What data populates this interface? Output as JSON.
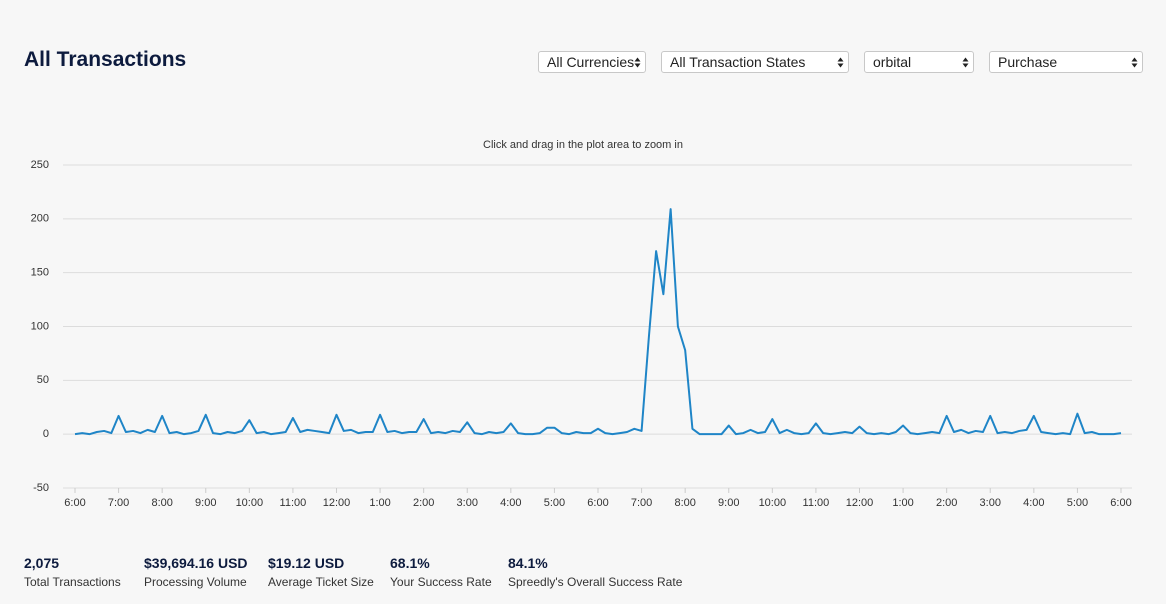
{
  "header": {
    "title": "All Transactions"
  },
  "filters": [
    "All Currencies",
    "All Transaction States",
    "orbital",
    "Purchase"
  ],
  "chart_data": {
    "type": "line",
    "subtitle": "Click and drag in the plot area to zoom in",
    "color": "#1f85c7",
    "grid": true,
    "ylim": [
      -50,
      250
    ],
    "yticks": [
      -50,
      0,
      50,
      100,
      150,
      200,
      250
    ],
    "categories": [
      "6:00",
      null,
      null,
      null,
      null,
      null,
      "7:00",
      null,
      null,
      null,
      null,
      null,
      "8:00",
      null,
      null,
      null,
      null,
      null,
      "9:00",
      null,
      null,
      null,
      null,
      null,
      "10:00",
      null,
      null,
      null,
      null,
      null,
      "11:00",
      null,
      null,
      null,
      null,
      null,
      "12:00",
      null,
      null,
      null,
      null,
      null,
      "1:00",
      null,
      null,
      null,
      null,
      null,
      "2:00",
      null,
      null,
      null,
      null,
      null,
      "3:00",
      null,
      null,
      null,
      null,
      null,
      "4:00",
      null,
      null,
      null,
      null,
      null,
      "5:00",
      null,
      null,
      null,
      null,
      null,
      "6:00",
      null,
      null,
      null,
      null,
      null,
      "7:00",
      null,
      null,
      null,
      null,
      null,
      "8:00",
      null,
      null,
      null,
      null,
      null,
      "9:00",
      null,
      null,
      null,
      null,
      null,
      "10:00",
      null,
      null,
      null,
      null,
      null,
      "11:00",
      null,
      null,
      null,
      null,
      null,
      "12:00",
      null,
      null,
      null,
      null,
      null,
      "1:00",
      null,
      null,
      null,
      null,
      null,
      "2:00",
      null,
      null,
      null,
      null,
      null,
      "3:00",
      null,
      null,
      null,
      null,
      null,
      "4:00",
      null,
      null,
      null,
      null,
      null,
      "5:00",
      null,
      null,
      null,
      null,
      null,
      "6:00"
    ],
    "values": [
      0,
      1,
      0,
      2,
      3,
      1,
      17,
      2,
      3,
      1,
      4,
      2,
      17,
      1,
      2,
      0,
      1,
      3,
      18,
      1,
      0,
      2,
      1,
      3,
      13,
      1,
      2,
      0,
      1,
      2,
      15,
      2,
      4,
      3,
      2,
      1,
      18,
      3,
      4,
      1,
      2,
      2,
      18,
      2,
      3,
      1,
      2,
      2,
      14,
      1,
      2,
      1,
      3,
      2,
      11,
      1,
      0,
      2,
      1,
      2,
      10,
      1,
      0,
      0,
      1,
      6,
      6,
      1,
      0,
      2,
      1,
      1,
      5,
      1,
      0,
      1,
      2,
      5,
      3,
      90,
      170,
      130,
      209,
      100,
      78,
      5,
      0,
      0,
      0,
      0,
      8,
      0,
      1,
      4,
      1,
      2,
      14,
      1,
      4,
      1,
      0,
      1,
      10,
      1,
      0,
      1,
      2,
      1,
      7,
      1,
      0,
      1,
      0,
      2,
      8,
      1,
      0,
      1,
      2,
      1,
      17,
      2,
      4,
      1,
      3,
      2,
      17,
      1,
      2,
      1,
      3,
      4,
      17,
      2,
      1,
      0,
      1,
      0,
      19,
      1,
      2,
      0,
      0,
      0,
      1
    ]
  },
  "stats": [
    {
      "value": "2,075",
      "label": "Total Transactions"
    },
    {
      "value": "$39,694.16 USD",
      "label": "Processing Volume"
    },
    {
      "value": "$19.12 USD",
      "label": "Average Ticket Size"
    },
    {
      "value": "68.1%",
      "label": "Your Success Rate"
    },
    {
      "value": "84.1%",
      "label": "Spreedly's Overall Success Rate"
    }
  ]
}
